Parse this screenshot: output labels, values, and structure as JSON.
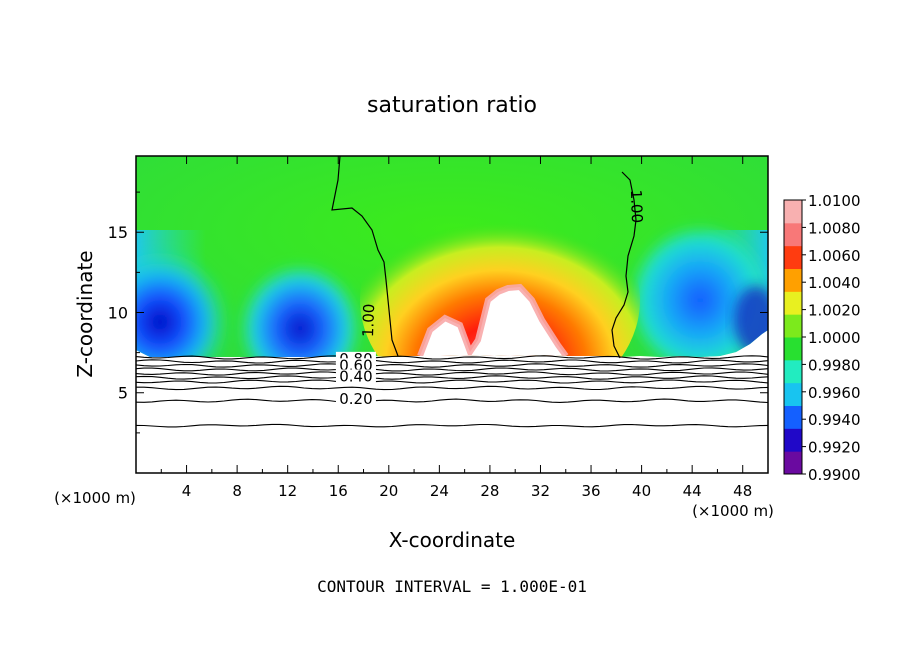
{
  "chart_data": {
    "type": "heatmap",
    "title": "saturation ratio",
    "xlabel": "X-coordinate",
    "ylabel": "Z-coordinate",
    "x_unit": "(×1000 m)",
    "y_unit": "(×1000 m)",
    "xlim": [
      0,
      50
    ],
    "ylim": [
      0,
      19.75
    ],
    "x_ticks": [
      4,
      8,
      12,
      16,
      20,
      24,
      28,
      32,
      36,
      40,
      44,
      48
    ],
    "y_ticks": [
      5,
      10,
      15
    ],
    "footer": "CONTOUR INTERVAL = 1.000E-01",
    "colorbar": {
      "labels": [
        "1.0100",
        "1.0080",
        "1.0060",
        "1.0040",
        "1.0020",
        "1.0000",
        "0.9980",
        "0.9960",
        "0.9940",
        "0.9920",
        "0.9900"
      ],
      "min": 0.99,
      "max": 1.01,
      "colors": [
        "#6a0aa0",
        "#2008c8",
        "#1460ff",
        "#18c4f0",
        "#22ecc0",
        "#28e030",
        "#7cea1c",
        "#e8f020",
        "#ffa000",
        "#ff3c10",
        "#f87878",
        "#f8b0b0"
      ]
    },
    "contour_labels": [
      {
        "text": "1.00",
        "x": 18.8,
        "z": 9.5
      },
      {
        "text": "1.00",
        "x": 39.2,
        "z": 16.6
      },
      {
        "text": "0.80",
        "x": 17.4,
        "z": 6.8
      },
      {
        "text": "0.60",
        "x": 17.4,
        "z": 6.4
      },
      {
        "text": "0.40",
        "x": 17.4,
        "z": 5.7
      },
      {
        "text": "0.20",
        "x": 17.4,
        "z": 4.3
      }
    ],
    "lower_contours_z": [
      7.2,
      6.95,
      6.7,
      6.45,
      6.2,
      5.95,
      5.7,
      5.3,
      4.5,
      2.95
    ],
    "saturated_region": {
      "x_range": [
        21.5,
        34.5
      ],
      "z_max": 11.7
    }
  }
}
